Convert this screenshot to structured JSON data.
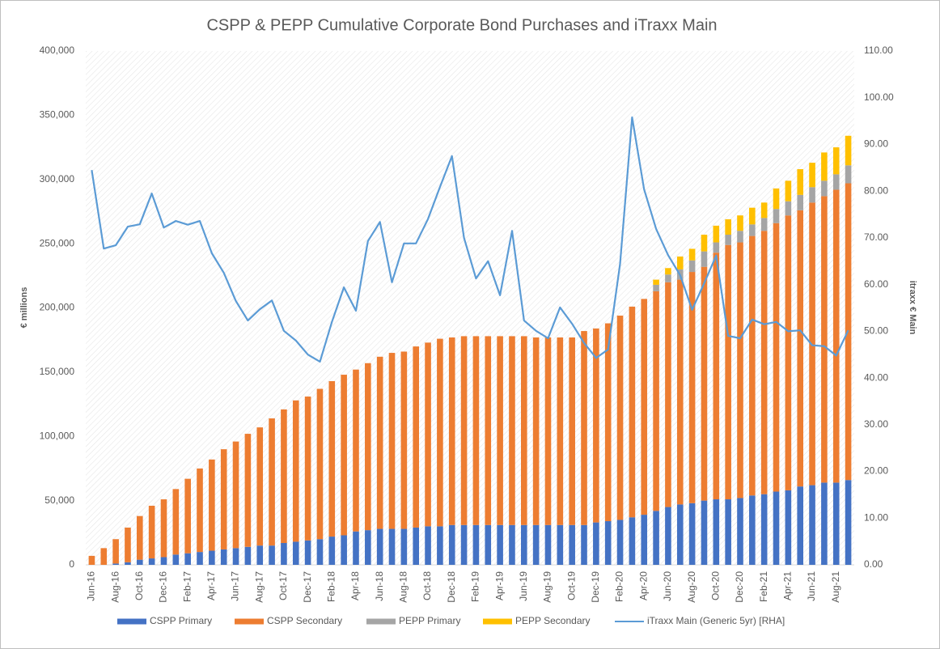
{
  "chart_data": {
    "type": "bar",
    "title": "CSPP & PEPP Cumulative Corporate Bond Purchases and iTraxx Main",
    "y_label": "€ millions",
    "y2_label": "itraxx € Main",
    "stacked": true,
    "categories": [
      "Jun-16",
      null,
      "Aug-16",
      null,
      "Oct-16",
      null,
      "Dec-16",
      null,
      "Feb-17",
      null,
      "Apr-17",
      null,
      "Jun-17",
      null,
      "Aug-17",
      null,
      "Oct-17",
      null,
      "Dec-17",
      null,
      "Feb-18",
      null,
      "Apr-18",
      null,
      "Jun-18",
      null,
      "Aug-18",
      null,
      "Oct-18",
      null,
      "Dec-18",
      null,
      "Feb-19",
      null,
      "Apr-19",
      null,
      "Jun-19",
      null,
      "Aug-19",
      null,
      "Oct-19",
      null,
      "Dec-19",
      null,
      "Feb-20",
      null,
      "Apr-20",
      null,
      "Jun-20",
      null,
      "Aug-20",
      null,
      "Oct-20",
      null,
      "Dec-20",
      null,
      "Feb-21",
      null,
      "Apr-21",
      null,
      "Jun-21",
      null,
      "Aug-21",
      null
    ],
    "series": [
      {
        "name": "CSPP Primary",
        "color": "#4472c4",
        "values": [
          0,
          0,
          1000,
          2000,
          4000,
          5000,
          6000,
          8000,
          9000,
          10000,
          11000,
          12000,
          13000,
          14000,
          15000,
          15000,
          17000,
          18000,
          19000,
          20000,
          22000,
          23000,
          26000,
          27000,
          28000,
          28000,
          28000,
          29000,
          30000,
          30000,
          31000,
          31000,
          31000,
          31000,
          31000,
          31000,
          31000,
          31000,
          31000,
          31000,
          31000,
          31000,
          33000,
          34000,
          35000,
          37000,
          39000,
          42000,
          45000,
          47000,
          48000,
          50000,
          51000,
          51000,
          52000,
          54000,
          55000,
          57000,
          58000,
          61000,
          62000,
          64000,
          64000,
          66000
        ]
      },
      {
        "name": "CSPP Secondary",
        "color": "#ed7d31",
        "values": [
          7000,
          13000,
          19000,
          27000,
          34000,
          41000,
          45000,
          51000,
          58000,
          65000,
          71000,
          78000,
          83000,
          88000,
          92000,
          99000,
          104000,
          110000,
          112000,
          117000,
          121000,
          125000,
          126000,
          130000,
          134000,
          137000,
          138000,
          141000,
          143000,
          146000,
          146000,
          147000,
          147000,
          147000,
          147000,
          147000,
          147000,
          146000,
          146000,
          146000,
          146000,
          151000,
          151000,
          154000,
          159000,
          164000,
          168000,
          171000,
          175000,
          175000,
          180000,
          182000,
          192000,
          198000,
          199000,
          202000,
          205000,
          209000,
          214000,
          215000,
          220000,
          223000,
          228000,
          231000
        ]
      },
      {
        "name": "PEPP Primary",
        "color": "#a5a5a5",
        "values": [
          0,
          0,
          0,
          0,
          0,
          0,
          0,
          0,
          0,
          0,
          0,
          0,
          0,
          0,
          0,
          0,
          0,
          0,
          0,
          0,
          0,
          0,
          0,
          0,
          0,
          0,
          0,
          0,
          0,
          0,
          0,
          0,
          0,
          0,
          0,
          0,
          0,
          0,
          0,
          0,
          0,
          0,
          0,
          0,
          0,
          0,
          0,
          5000,
          6000,
          8000,
          9000,
          12000,
          8000,
          8000,
          9000,
          9000,
          10000,
          11000,
          11000,
          12000,
          12000,
          12000,
          12000,
          14000
        ]
      },
      {
        "name": "PEPP Secondary",
        "color": "#ffc000",
        "values": [
          0,
          0,
          0,
          0,
          0,
          0,
          0,
          0,
          0,
          0,
          0,
          0,
          0,
          0,
          0,
          0,
          0,
          0,
          0,
          0,
          0,
          0,
          0,
          0,
          0,
          0,
          0,
          0,
          0,
          0,
          0,
          0,
          0,
          0,
          0,
          0,
          0,
          0,
          0,
          0,
          0,
          0,
          0,
          0,
          0,
          0,
          0,
          4000,
          5000,
          10000,
          9000,
          13000,
          13000,
          12000,
          12000,
          13000,
          12000,
          16000,
          16000,
          20000,
          19000,
          22000,
          21000,
          23000
        ]
      },
      {
        "name": "iTraxx Main (Generic 5yr) [RHA]",
        "color": "#5b9bd5",
        "axis": "y2",
        "type": "line",
        "values": [
          84.5,
          67.7,
          68.4,
          72.4,
          72.9,
          79.5,
          72.2,
          73.6,
          72.8,
          73.6,
          66.7,
          62.5,
          56.5,
          52.3,
          54.7,
          56.6,
          50.1,
          48.0,
          45.0,
          43.5,
          52.0,
          59.4,
          54.4,
          69.3,
          73.4,
          60.5,
          68.8,
          68.8,
          74.0,
          80.9,
          87.5,
          70.0,
          61.3,
          65.0,
          57.7,
          71.5,
          52.3,
          50.1,
          48.5,
          55.1,
          51.6,
          47.5,
          44.3,
          46.1,
          64.4,
          95.8,
          80.4,
          71.9,
          66.3,
          62.0,
          54.6,
          60.3,
          66.2,
          49.0,
          48.5,
          52.5,
          51.5,
          52.0,
          50.0,
          50.2,
          47.0,
          46.8,
          44.8,
          50.2
        ]
      }
    ],
    "ylim": [
      0,
      400000
    ],
    "yticks": [
      0,
      {
        "value": 50000,
        "label": "50,000"
      },
      {
        "value": 100000,
        "label": "100,000"
      },
      {
        "value": 150000,
        "label": "150,000"
      },
      {
        "value": 200000,
        "label": "200,000"
      },
      {
        "value": 250000,
        "label": "250,000"
      },
      {
        "value": 300000,
        "label": "300,000"
      },
      {
        "value": 350000,
        "label": "350,000"
      },
      {
        "value": 400000,
        "label": "400,000"
      }
    ],
    "y2lim": [
      0,
      110
    ],
    "y2ticks": [
      {
        "value": 0,
        "label": "0.00"
      },
      {
        "value": 10,
        "label": "10.00"
      },
      {
        "value": 20,
        "label": "20.00"
      },
      {
        "value": 30,
        "label": "30.00"
      },
      {
        "value": 40,
        "label": "40.00"
      },
      {
        "value": 50,
        "label": "50.00"
      },
      {
        "value": 60,
        "label": "60.00"
      },
      {
        "value": 70,
        "label": "70.00"
      },
      {
        "value": 80,
        "label": "80.00"
      },
      {
        "value": 90,
        "label": "90.00"
      },
      {
        "value": 100,
        "label": "100.00"
      },
      {
        "value": 110,
        "label": "110.00"
      }
    ],
    "legend": "bottom"
  }
}
